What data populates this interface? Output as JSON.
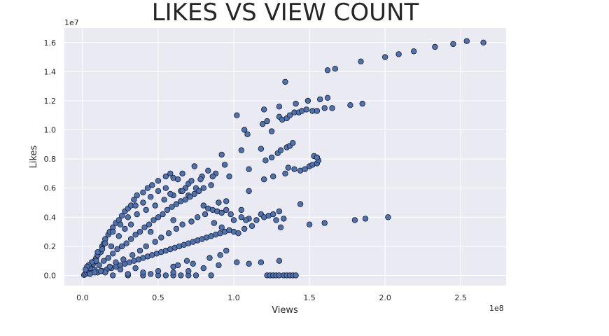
{
  "chart_data": {
    "type": "scatter",
    "title": "LIKES VS VIEW COUNT",
    "xlabel": "Views",
    "ylabel": "Likes",
    "x_multiplier_label": "1e8",
    "y_multiplier_label": "1e7",
    "xlim": [
      -0.12,
      2.8
    ],
    "ylim": [
      -0.07,
      1.7
    ],
    "x_ticks": [
      0.0,
      0.5,
      1.0,
      1.5,
      2.0,
      2.5
    ],
    "x_tick_labels": [
      "0.0",
      "0.5",
      "1.0",
      "1.5",
      "2.0",
      "2.5"
    ],
    "y_ticks": [
      0.0,
      0.2,
      0.4,
      0.6,
      0.8,
      1.0,
      1.2,
      1.4,
      1.6
    ],
    "y_tick_labels": [
      "0.0",
      "0.2",
      "0.4",
      "0.6",
      "0.8",
      "1.0",
      "1.2",
      "1.4",
      "1.6"
    ],
    "grid": true,
    "background_color": "#eaeaf2",
    "marker_color": "#4c72b0",
    "marker_edge_color": "#1a1a2e",
    "points": [
      [
        0.01,
        0.003
      ],
      [
        0.02,
        0.01
      ],
      [
        0.03,
        0.02
      ],
      [
        0.04,
        0.03
      ],
      [
        0.05,
        0.05
      ],
      [
        0.06,
        0.06
      ],
      [
        0.07,
        0.08
      ],
      [
        0.08,
        0.1
      ],
      [
        0.09,
        0.12
      ],
      [
        0.1,
        0.14
      ],
      [
        0.12,
        0.16
      ],
      [
        0.13,
        0.2
      ],
      [
        0.14,
        0.22
      ],
      [
        0.15,
        0.25
      ],
      [
        0.17,
        0.28
      ],
      [
        0.18,
        0.3
      ],
      [
        0.2,
        0.33
      ],
      [
        0.22,
        0.36
      ],
      [
        0.24,
        0.38
      ],
      [
        0.26,
        0.41
      ],
      [
        0.28,
        0.44
      ],
      [
        0.3,
        0.46
      ],
      [
        0.32,
        0.48
      ],
      [
        0.34,
        0.52
      ],
      [
        0.36,
        0.55
      ],
      [
        0.4,
        0.57
      ],
      [
        0.43,
        0.6
      ],
      [
        0.46,
        0.62
      ],
      [
        0.5,
        0.65
      ],
      [
        0.55,
        0.68
      ],
      [
        0.58,
        0.7
      ],
      [
        0.6,
        0.67
      ],
      [
        0.63,
        0.66
      ],
      [
        0.66,
        0.7
      ],
      [
        0.7,
        0.63
      ],
      [
        0.74,
        0.75
      ],
      [
        0.79,
        0.68
      ],
      [
        0.83,
        0.72
      ],
      [
        0.88,
        0.7
      ],
      [
        0.92,
        0.83
      ],
      [
        0.94,
        0.76
      ],
      [
        0.97,
        0.68
      ],
      [
        0.6,
        0.55
      ],
      [
        0.65,
        0.58
      ],
      [
        0.7,
        0.55
      ],
      [
        0.75,
        0.6
      ],
      [
        0.8,
        0.6
      ],
      [
        0.85,
        0.62
      ],
      [
        0.9,
        0.5
      ],
      [
        0.95,
        0.51
      ],
      [
        0.5,
        0.58
      ],
      [
        0.55,
        0.6
      ],
      [
        0.4,
        0.5
      ],
      [
        0.45,
        0.54
      ],
      [
        0.35,
        0.48
      ],
      [
        0.3,
        0.4
      ],
      [
        0.25,
        0.35
      ],
      [
        0.2,
        0.3
      ],
      [
        0.15,
        0.22
      ],
      [
        0.1,
        0.16
      ],
      [
        0.05,
        0.05
      ],
      [
        0.08,
        0.04
      ],
      [
        0.11,
        0.07
      ],
      [
        0.14,
        0.1
      ],
      [
        0.17,
        0.12
      ],
      [
        0.2,
        0.15
      ],
      [
        0.23,
        0.18
      ],
      [
        0.26,
        0.2
      ],
      [
        0.29,
        0.22
      ],
      [
        0.32,
        0.25
      ],
      [
        0.35,
        0.28
      ],
      [
        0.38,
        0.3
      ],
      [
        0.41,
        0.33
      ],
      [
        0.44,
        0.35
      ],
      [
        0.47,
        0.38
      ],
      [
        0.5,
        0.4
      ],
      [
        0.53,
        0.42
      ],
      [
        0.56,
        0.45
      ],
      [
        0.59,
        0.47
      ],
      [
        0.62,
        0.49
      ],
      [
        0.65,
        0.51
      ],
      [
        0.68,
        0.52
      ],
      [
        0.71,
        0.54
      ],
      [
        0.74,
        0.56
      ],
      [
        0.77,
        0.58
      ],
      [
        0.8,
        0.48
      ],
      [
        0.83,
        0.46
      ],
      [
        0.86,
        0.45
      ],
      [
        0.89,
        0.44
      ],
      [
        0.92,
        0.43
      ],
      [
        0.95,
        0.45
      ],
      [
        0.98,
        0.42
      ],
      [
        1.0,
        0.38
      ],
      [
        1.05,
        0.4
      ],
      [
        1.1,
        0.39
      ],
      [
        0.1,
        0.02
      ],
      [
        0.13,
        0.03
      ],
      [
        0.16,
        0.04
      ],
      [
        0.19,
        0.05
      ],
      [
        0.22,
        0.06
      ],
      [
        0.25,
        0.07
      ],
      [
        0.28,
        0.08
      ],
      [
        0.31,
        0.09
      ],
      [
        0.34,
        0.1
      ],
      [
        0.37,
        0.11
      ],
      [
        0.4,
        0.12
      ],
      [
        0.43,
        0.13
      ],
      [
        0.46,
        0.14
      ],
      [
        0.49,
        0.15
      ],
      [
        0.52,
        0.16
      ],
      [
        0.55,
        0.17
      ],
      [
        0.58,
        0.18
      ],
      [
        0.61,
        0.19
      ],
      [
        0.64,
        0.2
      ],
      [
        0.67,
        0.21
      ],
      [
        0.7,
        0.22
      ],
      [
        0.73,
        0.23
      ],
      [
        0.76,
        0.24
      ],
      [
        0.79,
        0.25
      ],
      [
        0.82,
        0.26
      ],
      [
        0.85,
        0.27
      ],
      [
        0.88,
        0.28
      ],
      [
        0.91,
        0.29
      ],
      [
        0.94,
        0.3
      ],
      [
        0.97,
        0.31
      ],
      [
        1.0,
        0.3
      ],
      [
        1.03,
        0.29
      ],
      [
        0.2,
        0.0
      ],
      [
        0.3,
        0.0
      ],
      [
        0.4,
        0.0
      ],
      [
        0.5,
        0.0
      ],
      [
        0.55,
        0.0
      ],
      [
        0.6,
        0.0
      ],
      [
        0.65,
        0.0
      ],
      [
        0.7,
        0.0
      ],
      [
        0.75,
        0.0
      ],
      [
        0.85,
        0.0
      ],
      [
        0.3,
        0.01
      ],
      [
        0.45,
        0.01
      ],
      [
        0.6,
        0.02
      ],
      [
        0.7,
        0.03
      ],
      [
        0.8,
        0.05
      ],
      [
        0.9,
        0.07
      ],
      [
        0.5,
        0.03
      ],
      [
        0.4,
        0.02
      ],
      [
        0.6,
        0.06
      ],
      [
        0.35,
        0.05
      ],
      [
        0.25,
        0.04
      ],
      [
        0.15,
        0.02
      ],
      [
        0.05,
        0.01
      ],
      [
        0.08,
        0.02
      ],
      [
        0.12,
        0.03
      ],
      [
        0.18,
        0.06
      ],
      [
        0.22,
        0.09
      ],
      [
        0.27,
        0.11
      ],
      [
        0.33,
        0.14
      ],
      [
        0.38,
        0.17
      ],
      [
        0.42,
        0.2
      ],
      [
        0.48,
        0.23
      ],
      [
        0.52,
        0.26
      ],
      [
        0.57,
        0.29
      ],
      [
        0.62,
        0.32
      ],
      [
        0.66,
        0.35
      ],
      [
        0.72,
        0.37
      ],
      [
        0.76,
        0.4
      ],
      [
        0.81,
        0.42
      ],
      [
        0.87,
        0.36
      ],
      [
        0.92,
        0.33
      ],
      [
        0.6,
        0.38
      ],
      [
        0.45,
        0.3
      ],
      [
        0.32,
        0.35
      ],
      [
        0.28,
        0.32
      ],
      [
        0.24,
        0.27
      ],
      [
        0.19,
        0.2
      ],
      [
        0.13,
        0.18
      ],
      [
        0.09,
        0.1
      ],
      [
        0.06,
        0.09
      ],
      [
        0.04,
        0.07
      ],
      [
        0.03,
        0.06
      ],
      [
        0.02,
        0.04
      ],
      [
        0.36,
        0.42
      ],
      [
        0.42,
        0.45
      ],
      [
        0.48,
        0.48
      ],
      [
        0.54,
        0.52
      ],
      [
        0.58,
        0.56
      ],
      [
        0.68,
        0.6
      ],
      [
        0.72,
        0.65
      ],
      [
        0.78,
        0.66
      ],
      [
        0.86,
        0.68
      ],
      [
        0.66,
        0.58
      ],
      [
        1.02,
        0.09
      ],
      [
        1.1,
        0.08
      ],
      [
        1.18,
        0.09
      ],
      [
        1.3,
        0.1
      ],
      [
        1.22,
        0.0
      ],
      [
        1.24,
        0.0
      ],
      [
        1.26,
        0.0
      ],
      [
        1.28,
        0.0
      ],
      [
        1.3,
        0.0
      ],
      [
        1.33,
        0.0
      ],
      [
        1.35,
        0.0
      ],
      [
        1.37,
        0.0
      ],
      [
        1.39,
        0.0
      ],
      [
        1.41,
        0.0
      ],
      [
        1.05,
        0.45
      ],
      [
        1.08,
        0.38
      ],
      [
        1.12,
        0.34
      ],
      [
        1.15,
        0.38
      ],
      [
        1.18,
        0.42
      ],
      [
        1.2,
        0.4
      ],
      [
        1.23,
        0.41
      ],
      [
        1.26,
        0.42
      ],
      [
        1.28,
        0.38
      ],
      [
        1.31,
        0.33
      ],
      [
        1.33,
        0.39
      ],
      [
        1.3,
        0.44
      ],
      [
        1.5,
        0.35
      ],
      [
        1.6,
        0.36
      ],
      [
        1.8,
        0.38
      ],
      [
        1.87,
        0.39
      ],
      [
        2.02,
        0.4
      ],
      [
        1.44,
        0.49
      ],
      [
        1.1,
        0.58
      ],
      [
        1.1,
        0.73
      ],
      [
        1.05,
        0.86
      ],
      [
        1.18,
        0.87
      ],
      [
        1.21,
        0.79
      ],
      [
        1.25,
        0.81
      ],
      [
        1.29,
        0.84
      ],
      [
        1.31,
        0.86
      ],
      [
        1.35,
        0.88
      ],
      [
        1.37,
        0.89
      ],
      [
        1.39,
        0.91
      ],
      [
        1.36,
        0.74
      ],
      [
        1.4,
        0.73
      ],
      [
        1.44,
        0.72
      ],
      [
        1.47,
        0.73
      ],
      [
        1.5,
        0.75
      ],
      [
        1.52,
        0.76
      ],
      [
        1.55,
        0.77
      ],
      [
        1.56,
        0.79
      ],
      [
        1.53,
        0.82
      ],
      [
        1.55,
        0.81
      ],
      [
        1.2,
        0.66
      ],
      [
        1.26,
        0.68
      ],
      [
        1.34,
        0.7
      ],
      [
        1.02,
        1.1
      ],
      [
        1.07,
        1.0
      ],
      [
        1.09,
        0.97
      ],
      [
        1.19,
        1.04
      ],
      [
        1.2,
        1.14
      ],
      [
        1.22,
        1.06
      ],
      [
        1.25,
        0.99
      ],
      [
        1.3,
        1.09
      ],
      [
        1.32,
        1.07
      ],
      [
        1.35,
        1.08
      ],
      [
        1.37,
        1.1
      ],
      [
        1.4,
        1.12
      ],
      [
        1.43,
        1.12
      ],
      [
        1.45,
        1.13
      ],
      [
        1.48,
        1.14
      ],
      [
        1.52,
        1.13
      ],
      [
        1.55,
        1.13
      ],
      [
        1.6,
        1.15
      ],
      [
        1.65,
        1.15
      ],
      [
        1.41,
        1.18
      ],
      [
        1.49,
        1.2
      ],
      [
        1.57,
        1.21
      ],
      [
        1.62,
        1.22
      ],
      [
        1.3,
        1.16
      ],
      [
        1.77,
        1.17
      ],
      [
        1.85,
        1.18
      ],
      [
        1.34,
        1.33
      ],
      [
        1.62,
        1.41
      ],
      [
        1.67,
        1.42
      ],
      [
        1.84,
        1.47
      ],
      [
        2.0,
        1.5
      ],
      [
        2.09,
        1.52
      ],
      [
        2.19,
        1.54
      ],
      [
        2.33,
        1.57
      ],
      [
        2.45,
        1.59
      ],
      [
        2.54,
        1.61
      ],
      [
        2.65,
        1.6
      ],
      [
        1.07,
        0.32
      ],
      [
        0.91,
        0.14
      ],
      [
        0.95,
        0.17
      ],
      [
        0.84,
        0.12
      ],
      [
        0.73,
        0.08
      ],
      [
        0.69,
        0.1
      ],
      [
        0.63,
        0.07
      ]
    ]
  }
}
